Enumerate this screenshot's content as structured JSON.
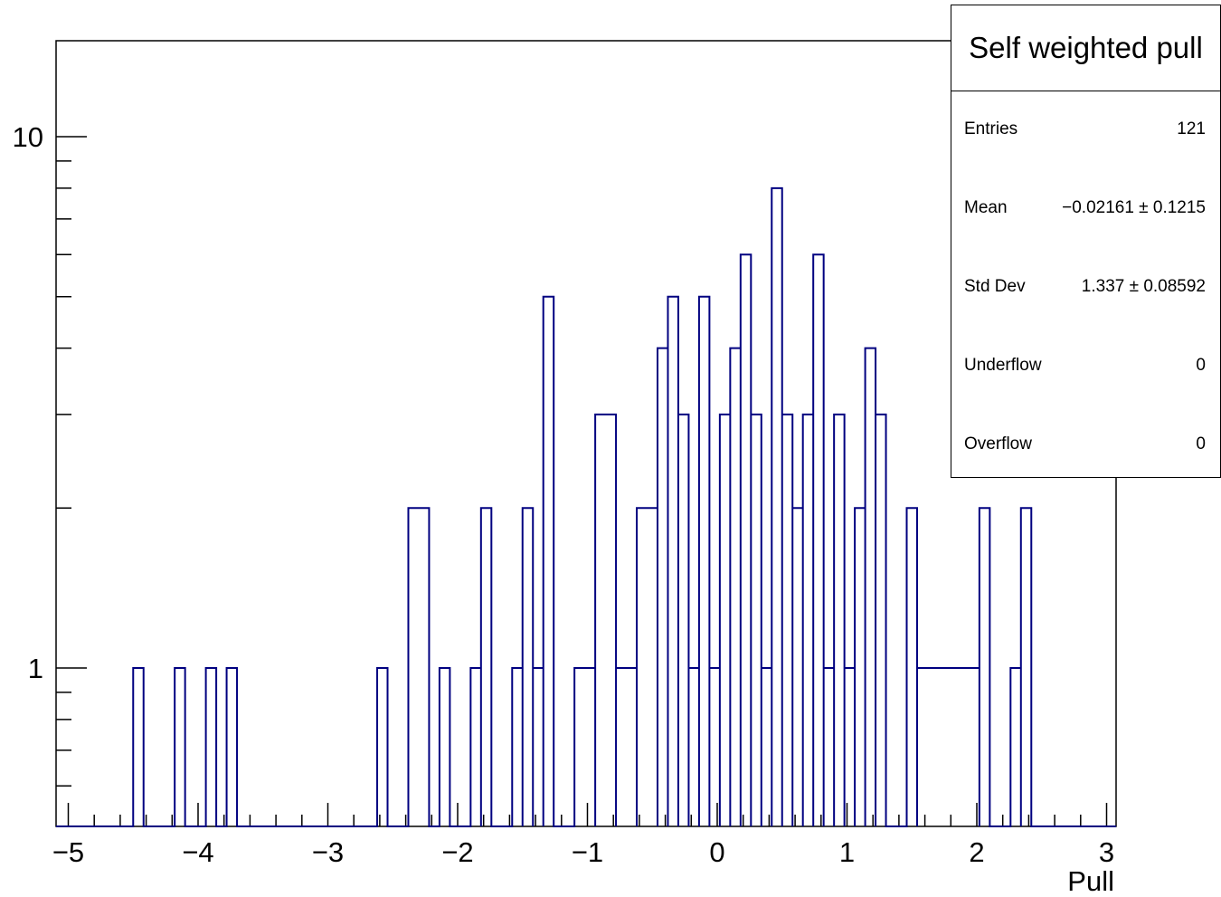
{
  "chart_data": {
    "type": "histogram",
    "title": "",
    "xlabel": "Pull",
    "ylabel": "",
    "xlim": [
      -5,
      3.1
    ],
    "ylim": [
      0.6,
      14
    ],
    "yscale": "log",
    "line_color": "#000080",
    "x_ticks": [
      "−5",
      "−4",
      "−3",
      "−2",
      "−1",
      "0",
      "1",
      "2",
      "3"
    ],
    "y_ticks": [
      "1",
      "10"
    ],
    "bins": [
      {
        "x0": -4.5,
        "x1": -4.42,
        "value": 1
      },
      {
        "x0": -4.18,
        "x1": -4.1,
        "value": 1
      },
      {
        "x0": -3.94,
        "x1": -3.86,
        "value": 1
      },
      {
        "x0": -3.78,
        "x1": -3.7,
        "value": 1
      },
      {
        "x0": -2.62,
        "x1": -2.54,
        "value": 1
      },
      {
        "x0": -2.38,
        "x1": -2.22,
        "value": 2
      },
      {
        "x0": -2.14,
        "x1": -2.06,
        "value": 1
      },
      {
        "x0": -1.9,
        "x1": -1.82,
        "value": 1
      },
      {
        "x0": -1.82,
        "x1": -1.74,
        "value": 2
      },
      {
        "x0": -1.58,
        "x1": -1.5,
        "value": 1
      },
      {
        "x0": -1.5,
        "x1": -1.42,
        "value": 2
      },
      {
        "x0": -1.42,
        "x1": -1.34,
        "value": 1
      },
      {
        "x0": -1.34,
        "x1": -1.26,
        "value": 5
      },
      {
        "x0": -1.1,
        "x1": -0.94,
        "value": 1
      },
      {
        "x0": -0.94,
        "x1": -0.78,
        "value": 3
      },
      {
        "x0": -0.78,
        "x1": -0.62,
        "value": 1
      },
      {
        "x0": -0.62,
        "x1": -0.46,
        "value": 2
      },
      {
        "x0": -0.46,
        "x1": -0.38,
        "value": 4
      },
      {
        "x0": -0.38,
        "x1": -0.3,
        "value": 5
      },
      {
        "x0": -0.3,
        "x1": -0.22,
        "value": 3
      },
      {
        "x0": -0.22,
        "x1": -0.14,
        "value": 1
      },
      {
        "x0": -0.14,
        "x1": -0.06,
        "value": 5
      },
      {
        "x0": -0.06,
        "x1": 0.02,
        "value": 1
      },
      {
        "x0": 0.02,
        "x1": 0.1,
        "value": 3
      },
      {
        "x0": 0.1,
        "x1": 0.18,
        "value": 4
      },
      {
        "x0": 0.18,
        "x1": 0.26,
        "value": 6
      },
      {
        "x0": 0.26,
        "x1": 0.34,
        "value": 3
      },
      {
        "x0": 0.34,
        "x1": 0.42,
        "value": 1
      },
      {
        "x0": 0.42,
        "x1": 0.5,
        "value": 8
      },
      {
        "x0": 0.5,
        "x1": 0.58,
        "value": 3
      },
      {
        "x0": 0.58,
        "x1": 0.66,
        "value": 2
      },
      {
        "x0": 0.66,
        "x1": 0.74,
        "value": 3
      },
      {
        "x0": 0.74,
        "x1": 0.82,
        "value": 6
      },
      {
        "x0": 0.82,
        "x1": 0.9,
        "value": 1
      },
      {
        "x0": 0.9,
        "x1": 0.98,
        "value": 3
      },
      {
        "x0": 0.98,
        "x1": 1.06,
        "value": 1
      },
      {
        "x0": 1.06,
        "x1": 1.14,
        "value": 2
      },
      {
        "x0": 1.14,
        "x1": 1.22,
        "value": 4
      },
      {
        "x0": 1.22,
        "x1": 1.3,
        "value": 3
      },
      {
        "x0": 1.46,
        "x1": 1.54,
        "value": 2
      },
      {
        "x0": 1.54,
        "x1": 2.02,
        "value": 1
      },
      {
        "x0": 2.02,
        "x1": 2.1,
        "value": 2
      },
      {
        "x0": 2.26,
        "x1": 2.34,
        "value": 1
      },
      {
        "x0": 2.34,
        "x1": 2.42,
        "value": 2
      }
    ]
  },
  "stats": {
    "title": "Self weighted pull",
    "rows": [
      {
        "label": "Entries",
        "value": "121"
      },
      {
        "label": "Mean",
        "value": "−0.02161 ± 0.1215"
      },
      {
        "label": "Std Dev",
        "value": "1.337 ± 0.08592"
      },
      {
        "label": "Underflow",
        "value": "0"
      },
      {
        "label": "Overflow",
        "value": "0"
      }
    ]
  }
}
